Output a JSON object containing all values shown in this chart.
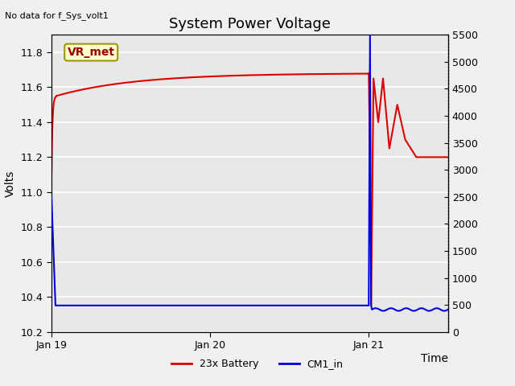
{
  "title": "System Power Voltage",
  "no_data_text": "No data for f_Sys_volt1",
  "xlabel": "Time",
  "ylabel_left": "Volts",
  "ylim_left": [
    10.2,
    11.9
  ],
  "ylim_right": [
    0,
    5500
  ],
  "yticks_left": [
    10.2,
    10.4,
    10.6,
    10.8,
    11.0,
    11.2,
    11.4,
    11.6,
    11.8
  ],
  "yticks_right": [
    0,
    500,
    1000,
    1500,
    2000,
    2500,
    3000,
    3500,
    4000,
    4500,
    5000,
    5500
  ],
  "xtick_positions": [
    0,
    1,
    2
  ],
  "xtick_labels": [
    "Jan 19",
    "Jan 20",
    "Jan 21"
  ],
  "xlim": [
    0,
    2.5
  ],
  "bg_color": "#e8e8e8",
  "fig_bg_color": "#f0f0f0",
  "grid_color": "#ffffff",
  "legend_entries": [
    "23x Battery",
    "CM1_in"
  ],
  "legend_colors": [
    "#dd0000",
    "#0000dd"
  ],
  "vr_met_box_facecolor": "#ffffcc",
  "vr_met_box_edgecolor": "#999900",
  "vr_met_text_color": "#990000",
  "title_fontsize": 13,
  "label_fontsize": 10,
  "tick_fontsize": 9,
  "annotation_fontsize": 10
}
